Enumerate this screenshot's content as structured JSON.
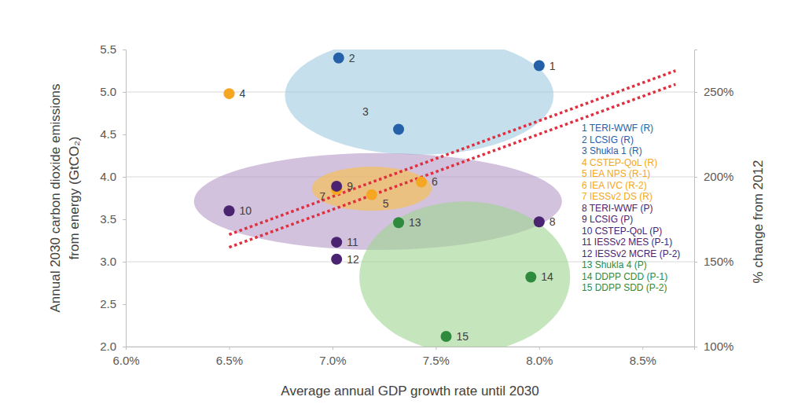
{
  "chart_data": {
    "type": "scatter",
    "xlabel": "Average annual GDP growth rate until 2030",
    "ylabel": [
      "Annual 2030 carbon dioxide emissions",
      "from energy  (GtCO₂)"
    ],
    "y2label": "% change from 2012",
    "xlim": [
      6.0,
      8.75
    ],
    "xticks": [
      {
        "value": 6.0,
        "label": "6.0%"
      },
      {
        "value": 6.5,
        "label": "6.5%"
      },
      {
        "value": 7.0,
        "label": "7.0%"
      },
      {
        "value": 7.5,
        "label": "7.5%"
      },
      {
        "value": 8.0,
        "label": "8.0%"
      },
      {
        "value": 8.5,
        "label": "8.5%"
      }
    ],
    "ylim": [
      2.0,
      5.5
    ],
    "yticks": [
      {
        "value": 2.0,
        "label": "2.0"
      },
      {
        "value": 2.5,
        "label": "2.5"
      },
      {
        "value": 3.0,
        "label": "3.0"
      },
      {
        "value": 3.5,
        "label": "3.5"
      },
      {
        "value": 4.0,
        "label": "4.0"
      },
      {
        "value": 4.5,
        "label": "4.5"
      },
      {
        "value": 5.0,
        "label": "5.0"
      },
      {
        "value": 5.5,
        "label": "5.5"
      }
    ],
    "y2lim": [
      100,
      275
    ],
    "y2ticks": [
      {
        "value": 100,
        "label": "100%"
      },
      {
        "value": 150,
        "label": "150%"
      },
      {
        "value": 200,
        "label": "200%"
      },
      {
        "value": 250,
        "label": "250%"
      }
    ],
    "grid": true,
    "regions": [
      {
        "cx": 7.42,
        "cy": 4.96,
        "rx": 0.65,
        "ry": 0.7,
        "color": "#9ecae1"
      },
      {
        "cx": 7.22,
        "cy": 3.71,
        "rx": 0.89,
        "ry": 0.57,
        "color": "#b49ac8"
      },
      {
        "cx": 7.19,
        "cy": 3.86,
        "rx": 0.29,
        "ry": 0.26,
        "color": "#fbbf45"
      },
      {
        "cx": 7.64,
        "cy": 2.82,
        "rx": 0.51,
        "ry": 0.89,
        "color": "#9fd38f"
      }
    ],
    "series": [
      {
        "type": "line",
        "line_style": "dotted",
        "color": "#e0303f",
        "x": [
          6.5,
          8.66
        ],
        "values": [
          3.32,
          5.25
        ]
      },
      {
        "type": "line",
        "line_style": "dotted",
        "color": "#e0303f",
        "x": [
          6.5,
          8.66
        ],
        "values": [
          3.17,
          5.09
        ]
      },
      {
        "type": "scatter",
        "marker": "circle",
        "x": [
          8.0,
          7.03,
          7.32,
          6.5,
          7.19,
          7.43,
          7.02,
          8.0,
          7.02,
          6.5,
          7.02,
          7.02,
          7.32,
          7.96,
          7.55
        ],
        "values": [
          5.31,
          5.4,
          4.56,
          4.98,
          3.79,
          3.94,
          3.85,
          3.47,
          3.89,
          3.6,
          3.23,
          3.03,
          3.46,
          2.82,
          2.12
        ],
        "colors": [
          "#2461a8",
          "#2461a8",
          "#2461a8",
          "#f5a623",
          "#f5a623",
          "#f5a623",
          "#f5a623",
          "#4a2470",
          "#4a2470",
          "#4a2470",
          "#4a2470",
          "#4a2470",
          "#2e8b3e",
          "#2e8b3e",
          "#2e8b3e"
        ],
        "point_labels": [
          "1",
          "2",
          "3",
          "4",
          "5",
          "6",
          "7",
          "8",
          "9",
          "10",
          "11",
          "12",
          "13",
          "14",
          "15"
        ],
        "legend_entries": [
          "1 TERI-WWF (R)",
          "2 LCSIG (R)",
          "3 Shukla 1 (R)",
          "4 CSTEP-QoL (R)",
          "5 IEA NPS (R-1)",
          "6 IEA IVC (R-2)",
          "7 IESSv2 DS (R)",
          "8 TERI-WWF (P)",
          "9 LCSIG (P)",
          "10 CSTEP-QoL (P)",
          "11 IESSv2 MES (P-1)",
          "12 IESSv2 MCRE (P-2)",
          "13 Shukla 4 (P)",
          "14 DDPP CDD (P-1)",
          "15 DDPP SDD (P-2)"
        ]
      }
    ]
  }
}
